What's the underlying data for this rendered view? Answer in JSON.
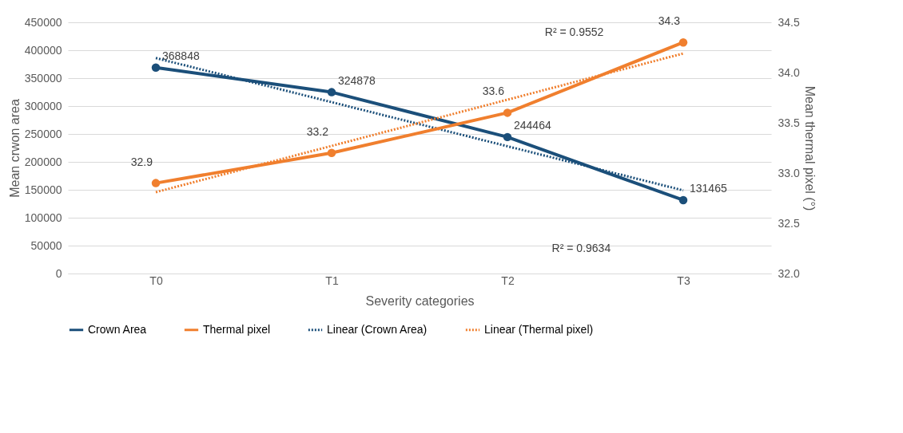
{
  "chart_data": {
    "type": "line",
    "xlabel": "Severity categories",
    "ylabel": "Mean crwon area",
    "y2label": "Mean thermal pixel (°)",
    "categories": [
      "T0",
      "T1",
      "T2",
      "T3"
    ],
    "ylim": [
      0,
      450000
    ],
    "yticks": [
      0,
      50000,
      100000,
      150000,
      200000,
      250000,
      300000,
      350000,
      400000,
      450000
    ],
    "y2lim": [
      32.0,
      34.5
    ],
    "y2ticks": [
      {
        "value": 32.0,
        "label": "32.0"
      },
      {
        "value": 32.5,
        "label": "32.5"
      },
      {
        "value": 33.0,
        "label": "33.0"
      },
      {
        "value": 33.5,
        "label": "33.5"
      },
      {
        "value": 34.0,
        "label": "34.0"
      },
      {
        "value": 34.5,
        "label": "34.5"
      }
    ],
    "grid": "y",
    "legend": "bottom",
    "series": [
      {
        "name": "Crown Area",
        "color": "#1b4f7a",
        "values": [
          368848,
          324878,
          244464,
          131465
        ],
        "marker": "circle",
        "line_style": "solid",
        "value_labels": [
          "368848",
          "324878",
          "244464",
          "131465"
        ]
      },
      {
        "name": "Thermal pixel",
        "color": "#f07f2e",
        "axis": "y2",
        "values": [
          32.9,
          33.2,
          33.6,
          34.3
        ],
        "marker": "circle",
        "line_style": "solid",
        "value_labels": [
          "32.9",
          "33.2",
          "33.6",
          "34.3"
        ]
      },
      {
        "name": "Linear (Crown Area)",
        "color": "#1b4f7a",
        "values": [
          386000,
          307000,
          228000,
          149000
        ],
        "marker": "none",
        "line_style": "dotted"
      },
      {
        "name": "Linear (Thermal pixel)",
        "color": "#f07f2e",
        "axis": "y2",
        "values": [
          32.81,
          33.27,
          33.73,
          34.19
        ],
        "marker": "none",
        "line_style": "dotted"
      }
    ],
    "annotations": [
      "R² = 0.9552",
      "R² = 0.9634"
    ]
  }
}
